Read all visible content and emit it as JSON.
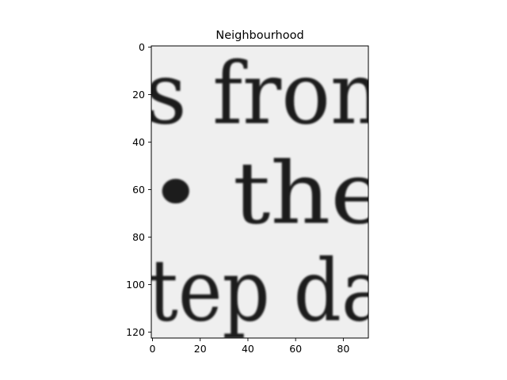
{
  "chart_data": {
    "type": "heatmap",
    "title": "Neighbourhood",
    "xlabel": "",
    "ylabel": "",
    "image_width": 91,
    "image_height": 123,
    "xlim": [
      -0.5,
      90.5
    ],
    "ylim": [
      122.5,
      -0.5
    ],
    "xticks": [
      0,
      20,
      40,
      60,
      80
    ],
    "yticks": [
      0,
      20,
      40,
      60,
      80,
      100,
      120
    ],
    "colormap": "gray",
    "background_color": "#efefef",
    "ink_color": "#1c1c1c",
    "text_lines": [
      {
        "text": "s fron",
        "baseline_row": 32
      },
      {
        "text": "• the",
        "baseline_row": 74
      },
      {
        "text": "tep da",
        "baseline_row": 115
      }
    ]
  }
}
